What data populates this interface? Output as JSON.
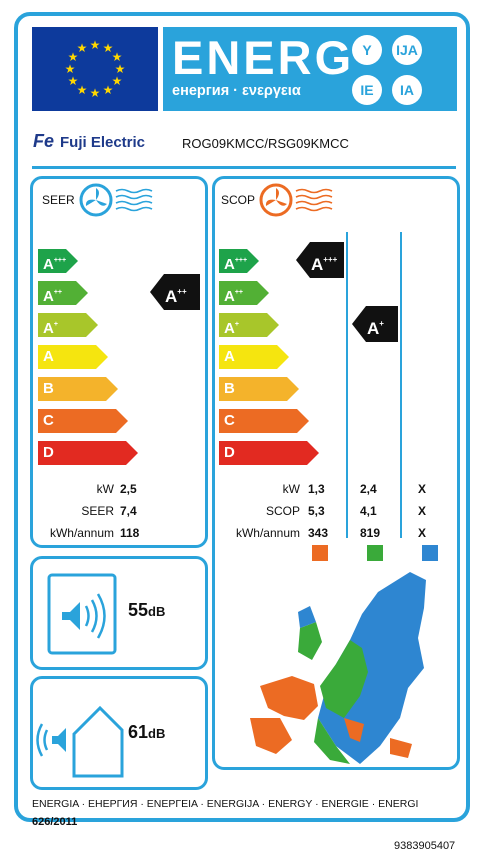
{
  "header": {
    "energy_word": "ENERG",
    "energy_sub": "енергия · ενεργεια",
    "lang_badges": [
      "Y",
      "IJA",
      "IE",
      "IA"
    ]
  },
  "supplier": {
    "brand": "Fuji Electric",
    "model": "ROG09KMCC/RSG09KMCC"
  },
  "cooling": {
    "title": "SEER",
    "classes": [
      {
        "letter": "A",
        "sup": "+++",
        "color": "#1ea34a"
      },
      {
        "letter": "A",
        "sup": "++",
        "color": "#52b035"
      },
      {
        "letter": "A",
        "sup": "+",
        "color": "#a8c62a"
      },
      {
        "letter": "A",
        "sup": "",
        "color": "#f5e50f"
      },
      {
        "letter": "B",
        "sup": "",
        "color": "#f4b32b"
      },
      {
        "letter": "C",
        "sup": "",
        "color": "#ec6b23"
      },
      {
        "letter": "D",
        "sup": "",
        "color": "#e22a21"
      }
    ],
    "rating": {
      "letter": "A",
      "sup": "++"
    },
    "rows": [
      {
        "label": "kW",
        "value": "2,5"
      },
      {
        "label": "SEER",
        "value": "7,4"
      },
      {
        "label": "kWh/annum",
        "value": "118"
      }
    ]
  },
  "heating": {
    "title": "SCOP",
    "classes": [
      {
        "letter": "A",
        "sup": "+++",
        "color": "#1ea34a"
      },
      {
        "letter": "A",
        "sup": "++",
        "color": "#52b035"
      },
      {
        "letter": "A",
        "sup": "+",
        "color": "#a8c62a"
      },
      {
        "letter": "A",
        "sup": "",
        "color": "#f5e50f"
      },
      {
        "letter": "B",
        "sup": "",
        "color": "#f4b32b"
      },
      {
        "letter": "C",
        "sup": "",
        "color": "#ec6b23"
      },
      {
        "letter": "D",
        "sup": "",
        "color": "#e22a21"
      }
    ],
    "rating_average": {
      "letter": "A",
      "sup": "+++"
    },
    "rating_warmer": {
      "letter": "A",
      "sup": "+"
    },
    "row_labels": [
      "kW",
      "SCOP",
      "kWh/annum"
    ],
    "col_average": [
      "1,3",
      "5,3",
      "343"
    ],
    "col_warmer": [
      "2,4",
      "4,1",
      "819"
    ],
    "col_colder": [
      "X",
      "X",
      "X"
    ],
    "zone_colors": [
      "#ec6b23",
      "#3aaa3a",
      "#2e86d1"
    ]
  },
  "noise": {
    "indoor": "55",
    "outdoor": "61",
    "unit": "dB"
  },
  "footer": {
    "energy_langs": "ENERGIA · ЕНЕРГИЯ · ΕΝΕΡΓΕΙΑ · ENERGIJA · ENERGY · ENERGIE · ENERGI",
    "regulation": "626/2011",
    "code": "9383905407"
  }
}
